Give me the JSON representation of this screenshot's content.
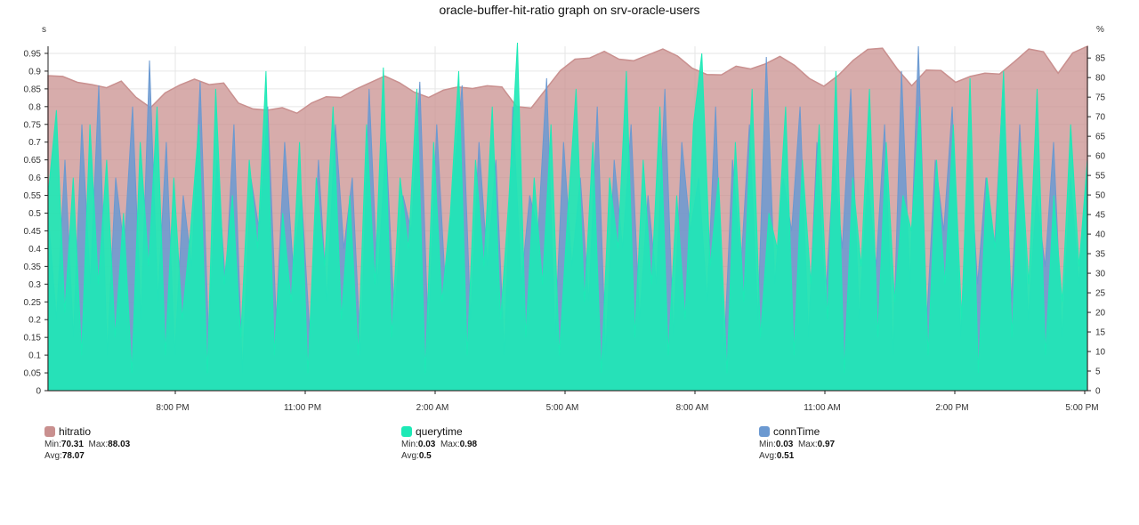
{
  "chart_data": {
    "type": "area",
    "title": "oracle-buffer-hit-ratio graph on srv-oracle-users",
    "left_axis": {
      "unit_label": "s",
      "range": [
        0,
        0.97
      ],
      "ticks": [
        "0",
        "0.05",
        "0.1",
        "0.15",
        "0.2",
        "0.25",
        "0.3",
        "0.35",
        "0.4",
        "0.45",
        "0.5",
        "0.55",
        "0.6",
        "0.65",
        "0.7",
        "0.75",
        "0.8",
        "0.85",
        "0.9",
        "0.95"
      ]
    },
    "right_axis": {
      "unit_label": "%",
      "range": [
        0,
        88
      ],
      "ticks": [
        "0",
        "5",
        "10",
        "15",
        "20",
        "25",
        "30",
        "35",
        "40",
        "45",
        "50",
        "55",
        "60",
        "65",
        "70",
        "75",
        "80",
        "85"
      ]
    },
    "x_ticks": [
      "8:00 PM",
      "11:00 PM",
      "2:00 AM",
      "5:00 AM",
      "8:00 AM",
      "11:00 AM",
      "2:00 PM",
      "5:00 PM"
    ],
    "grid": true,
    "legend_position": "bottom",
    "series": [
      {
        "name": "hitratio",
        "axis": "right",
        "color": "#c9908f",
        "min": "70.31",
        "max": "88.03",
        "avg": "78.07",
        "values": [
          80.5,
          80.3,
          78.8,
          78.2,
          77.4,
          79.1,
          75.0,
          72.3,
          76.1,
          78.1,
          79.6,
          78.2,
          78.6,
          73.5,
          72.0,
          71.7,
          72.3,
          70.9,
          73.5,
          75.1,
          74.9,
          77.0,
          78.7,
          80.4,
          78.7,
          76.3,
          74.9,
          76.8,
          77.6,
          77.2,
          77.9,
          77.6,
          72.6,
          72.2,
          77.0,
          81.8,
          84.7,
          85.0,
          86.7,
          84.7,
          84.3,
          85.8,
          87.3,
          85.5,
          82.4,
          80.8,
          80.7,
          82.9,
          82.2,
          83.5,
          85.4,
          83.1,
          79.8,
          77.8,
          80.6,
          84.4,
          87.2,
          87.5,
          82.3,
          77.9,
          81.9,
          81.8,
          78.8,
          80.3,
          81.1,
          80.9,
          84.0,
          87.3,
          86.6,
          81.1,
          86.3,
          88.0
        ]
      },
      {
        "name": "querytime",
        "axis": "left",
        "color": "#1de9b6",
        "min": "0.03",
        "max": "0.98",
        "avg": "0.5",
        "values": [
          0.55,
          0.79,
          0.22,
          0.6,
          0.1,
          0.75,
          0.3,
          0.65,
          0.15,
          0.5,
          0.05,
          0.7,
          0.35,
          0.8,
          0.1,
          0.6,
          0.2,
          0.45,
          0.75,
          0.05,
          0.85,
          0.3,
          0.55,
          0.15,
          0.65,
          0.4,
          0.9,
          0.1,
          0.5,
          0.25,
          0.7,
          0.05,
          0.6,
          0.35,
          0.8,
          0.2,
          0.55,
          0.1,
          0.75,
          0.3,
          0.91,
          0.15,
          0.6,
          0.4,
          0.85,
          0.05,
          0.7,
          0.25,
          0.5,
          0.9,
          0.1,
          0.65,
          0.35,
          0.8,
          0.2,
          0.55,
          0.98,
          0.15,
          0.6,
          0.3,
          0.75,
          0.1,
          0.5,
          0.85,
          0.25,
          0.7,
          0.05,
          0.6,
          0.4,
          0.9,
          0.15,
          0.65,
          0.3,
          0.8,
          0.1,
          0.55,
          0.2,
          0.75,
          0.95,
          0.35,
          0.6,
          0.05,
          0.7,
          0.25,
          0.85,
          0.15,
          0.5,
          0.4,
          0.8,
          0.1,
          0.65,
          0.3,
          0.75,
          0.2,
          0.9,
          0.05,
          0.6,
          0.35,
          0.85,
          0.15,
          0.7,
          0.25,
          0.55,
          0.45,
          0.8,
          0.1,
          0.65,
          0.3,
          0.75,
          0.2,
          0.88,
          0.05,
          0.6,
          0.4,
          0.9,
          0.15,
          0.7,
          0.3,
          0.85,
          0.1,
          0.55,
          0.25,
          0.75,
          0.35,
          0.65
        ]
      },
      {
        "name": "connTime",
        "axis": "left",
        "color": "#6b99d1",
        "min": "0.03",
        "max": "0.97",
        "avg": "0.51",
        "values": [
          0.5,
          0.2,
          0.65,
          0.15,
          0.75,
          0.3,
          0.86,
          0.1,
          0.6,
          0.4,
          0.8,
          0.2,
          0.93,
          0.25,
          0.7,
          0.1,
          0.55,
          0.35,
          0.87,
          0.15,
          0.65,
          0.3,
          0.75,
          0.05,
          0.6,
          0.45,
          0.8,
          0.2,
          0.7,
          0.35,
          0.55,
          0.15,
          0.65,
          0.25,
          0.75,
          0.4,
          0.6,
          0.1,
          0.85,
          0.3,
          0.7,
          0.2,
          0.55,
          0.45,
          0.87,
          0.15,
          0.75,
          0.3,
          0.6,
          0.86,
          0.2,
          0.7,
          0.35,
          0.65,
          0.1,
          0.8,
          0.3,
          0.55,
          0.45,
          0.88,
          0.15,
          0.7,
          0.35,
          0.6,
          0.25,
          0.8,
          0.1,
          0.65,
          0.4,
          0.75,
          0.2,
          0.55,
          0.3,
          0.85,
          0.15,
          0.7,
          0.45,
          0.6,
          0.25,
          0.8,
          0.1,
          0.65,
          0.35,
          0.75,
          0.2,
          0.94,
          0.3,
          0.6,
          0.45,
          0.8,
          0.15,
          0.7,
          0.25,
          0.65,
          0.4,
          0.85,
          0.2,
          0.6,
          0.35,
          0.75,
          0.1,
          0.9,
          0.3,
          0.97,
          0.2,
          0.65,
          0.45,
          0.8,
          0.15,
          0.7,
          0.3,
          0.6,
          0.4,
          0.85,
          0.25,
          0.75,
          0.2,
          0.55,
          0.35,
          0.7,
          0.15,
          0.6,
          0.3,
          0.65
        ]
      }
    ]
  },
  "legend": [
    {
      "name": "hitratio",
      "min_label": "Min:",
      "min": "70.31",
      "max_label": "Max:",
      "max": "88.03",
      "avg_label": "Avg:",
      "avg": "78.07"
    },
    {
      "name": "querytime",
      "min_label": "Min:",
      "min": "0.03",
      "max_label": "Max:",
      "max": "0.98",
      "avg_label": "Avg:",
      "avg": "0.5"
    },
    {
      "name": "connTime",
      "min_label": "Min:",
      "min": "0.03",
      "max_label": "Max:",
      "max": "0.97",
      "avg_label": "Avg:",
      "avg": "0.51"
    }
  ]
}
